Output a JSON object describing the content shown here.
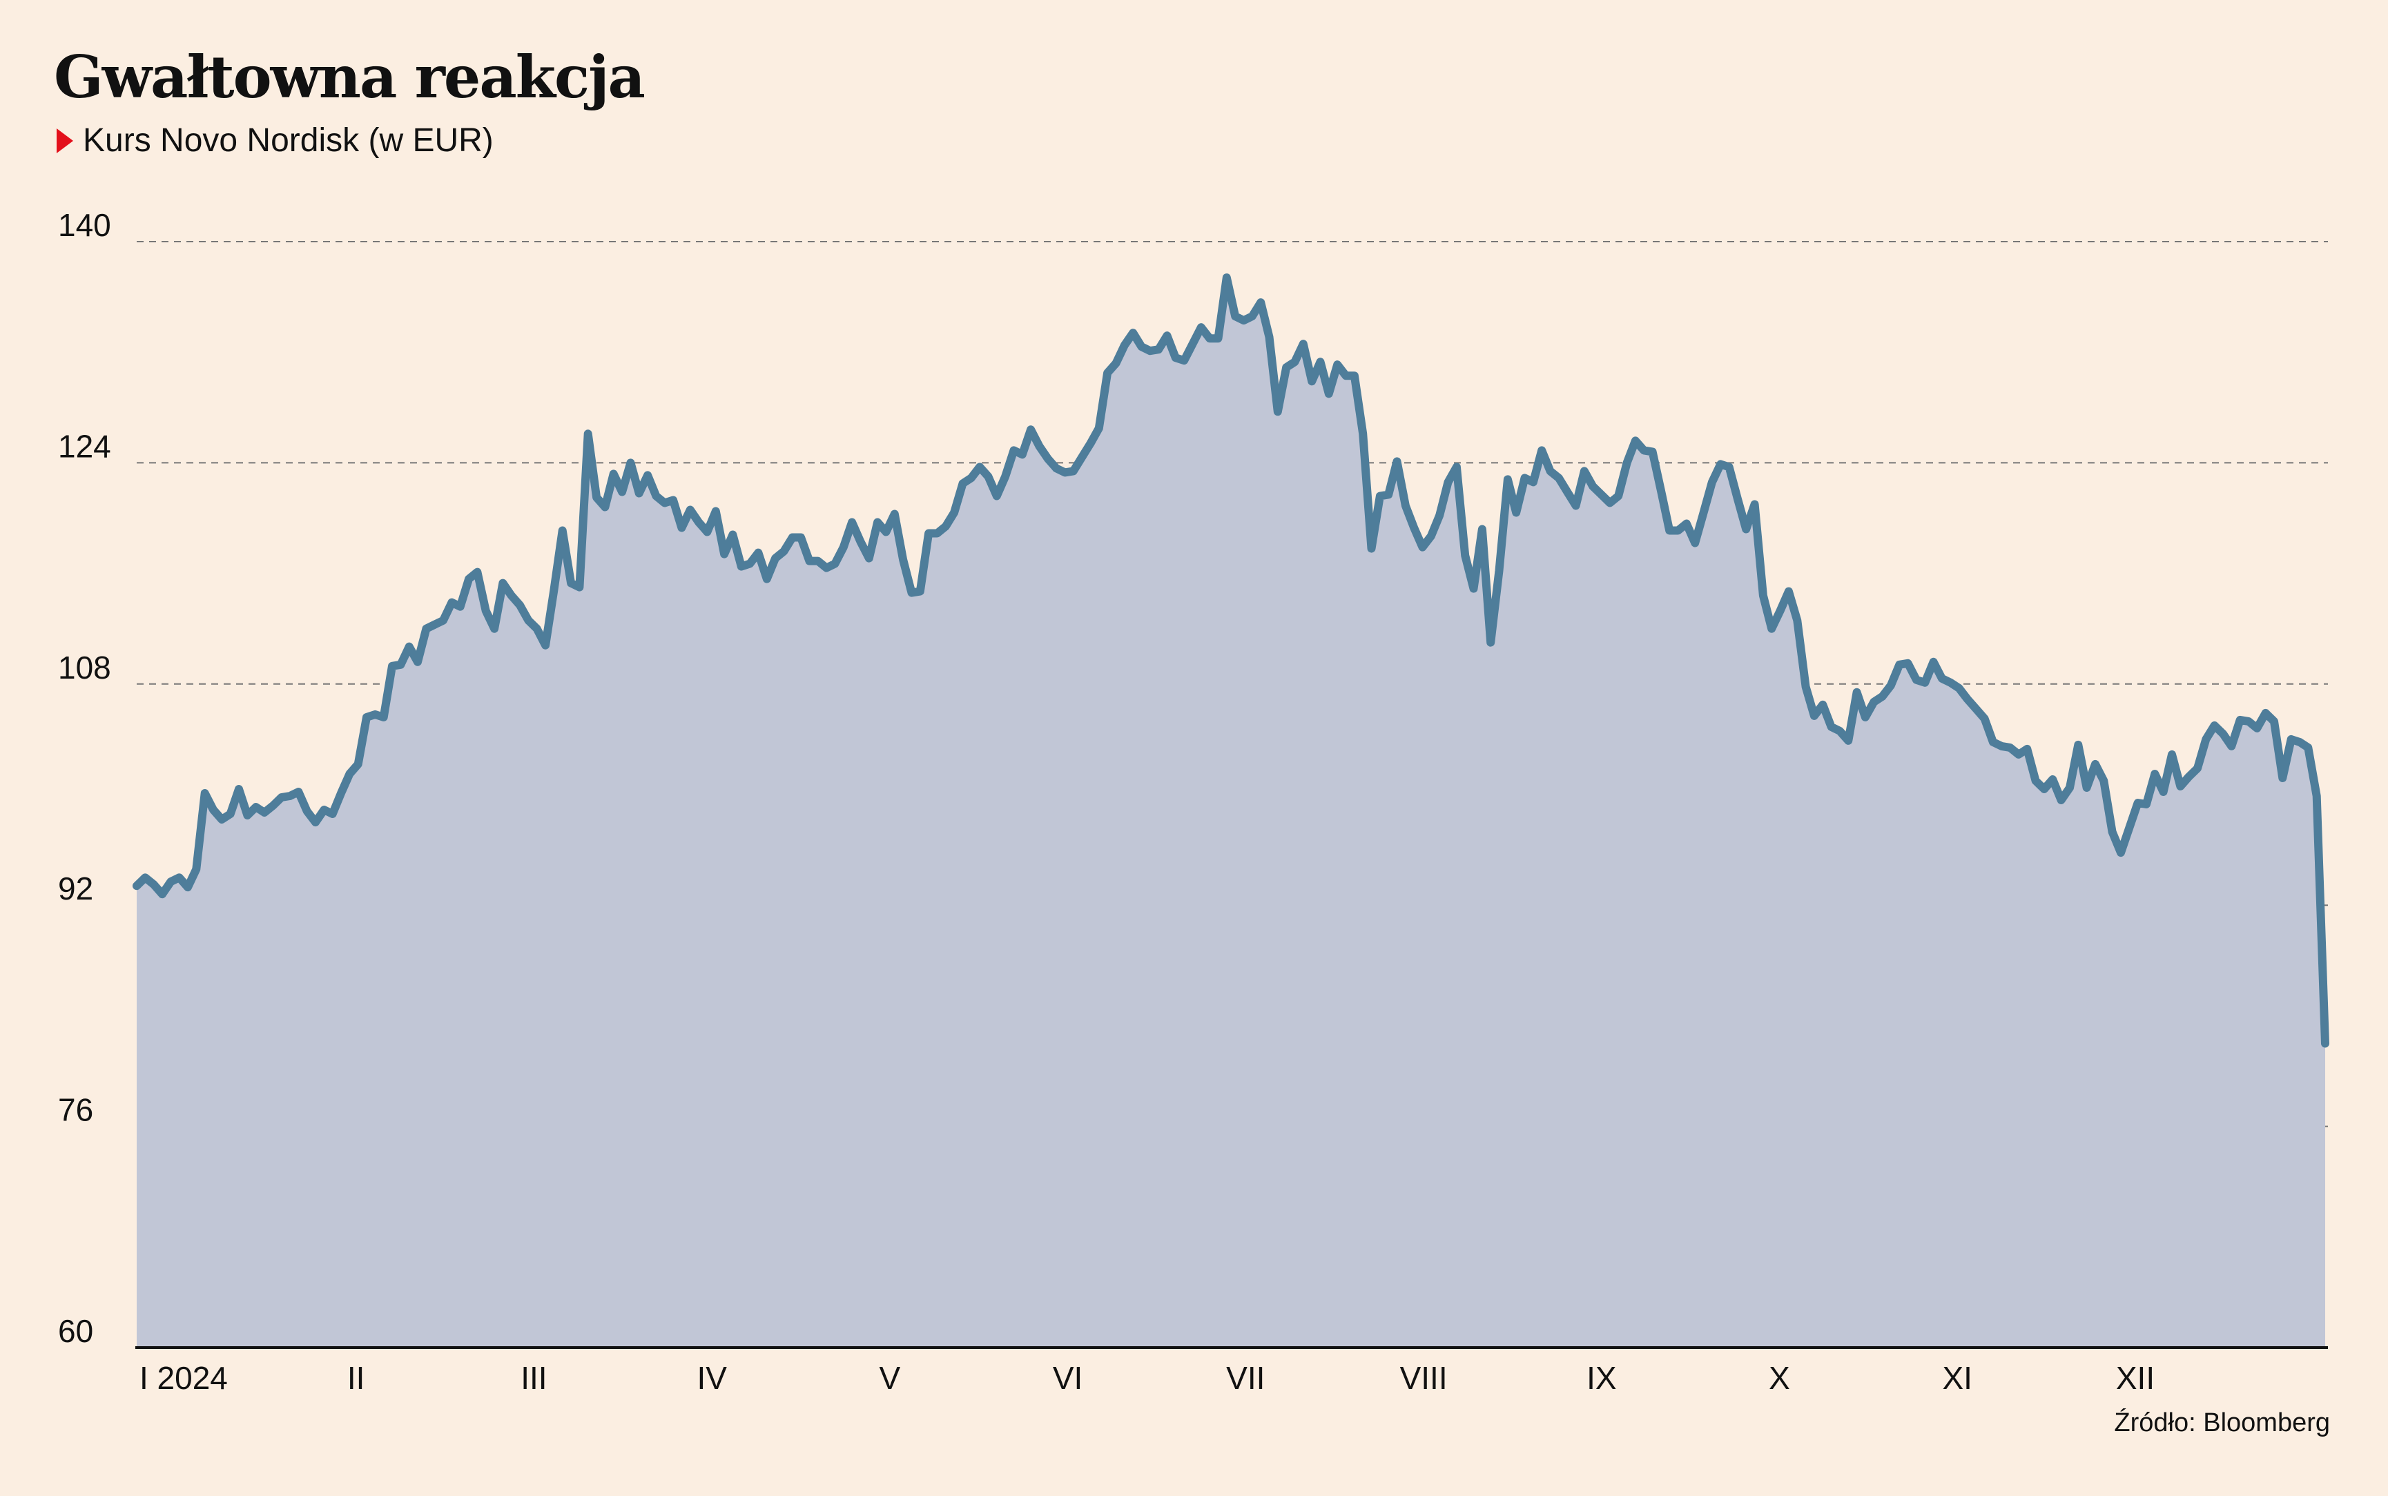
{
  "title": "Gwałtowna reakcja",
  "subtitle": "Kurs Novo Nordisk (w EUR)",
  "source": "Źródło: Bloomberg",
  "colors": {
    "background": "#FBEEE1",
    "line": "#4E7D9A",
    "area": "#C1C6D6",
    "marker": "#E3101B",
    "grid": "#777777"
  },
  "chart_data": {
    "type": "area",
    "title": "Gwałtowna reakcja",
    "subtitle": "Kurs Novo Nordisk (w EUR)",
    "xlabel": "",
    "ylabel": "",
    "ylim": [
      60,
      140
    ],
    "yticks": [
      60,
      76,
      92,
      108,
      124,
      140
    ],
    "xticks": [
      "I 2024",
      "II",
      "III",
      "IV",
      "V",
      "VI",
      "VII",
      "VIII",
      "IX",
      "X",
      "XI",
      "XII"
    ],
    "grid": true,
    "legend": "none",
    "series": [
      {
        "values": [
          93.4,
          94.0,
          93.5,
          92.8,
          93.7,
          94.0,
          93.3,
          94.6,
          100.1,
          98.9,
          98.2,
          98.6,
          100.4,
          98.5,
          99.1,
          98.7,
          99.2,
          99.8,
          99.9,
          100.2,
          98.8,
          98.0,
          98.9,
          98.6,
          100.1,
          101.5,
          102.2,
          105.6,
          105.8,
          105.6,
          109.3,
          109.4,
          110.7,
          109.6,
          112.0,
          112.3,
          112.6,
          113.9,
          113.6,
          115.6,
          116.1,
          113.3,
          112.0,
          115.3,
          114.4,
          113.7,
          112.6,
          112.0,
          110.8,
          114.8,
          119.1,
          115.3,
          115.0,
          126.1,
          121.5,
          120.8,
          123.2,
          121.9,
          124.0,
          121.8,
          123.1,
          121.6,
          121.1,
          121.3,
          119.3,
          120.6,
          119.7,
          119.0,
          120.5,
          117.4,
          118.8,
          116.5,
          116.7,
          117.5,
          115.6,
          117.1,
          117.6,
          118.6,
          118.6,
          116.9,
          116.9,
          116.4,
          116.7,
          117.9,
          119.7,
          118.3,
          117.1,
          119.7,
          119.0,
          120.3,
          117.0,
          114.6,
          114.7,
          118.9,
          118.9,
          119.4,
          120.4,
          122.5,
          122.9,
          123.7,
          123.0,
          121.6,
          123.0,
          124.9,
          124.6,
          126.4,
          125.2,
          124.3,
          123.6,
          123.3,
          123.4,
          124.4,
          125.4,
          126.5,
          130.5,
          131.2,
          132.5,
          133.4,
          132.4,
          132.1,
          132.2,
          133.2,
          131.6,
          131.4,
          132.6,
          133.8,
          133.0,
          133.0,
          137.4,
          134.6,
          134.3,
          134.6,
          135.6,
          133.1,
          127.7,
          130.9,
          131.3,
          132.6,
          129.9,
          131.3,
          129.0,
          131.1,
          130.3,
          130.3,
          126.1,
          117.8,
          121.6,
          121.7,
          124.1,
          120.9,
          119.3,
          117.9,
          118.7,
          120.2,
          122.6,
          123.7,
          117.3,
          114.9,
          119.2,
          111.0,
          116.2,
          122.8,
          120.4,
          122.9,
          122.6,
          124.9,
          123.4,
          122.9,
          121.9,
          120.9,
          123.4,
          122.3,
          121.7,
          121.1,
          121.6,
          124.0,
          125.6,
          124.9,
          124.8,
          122.0,
          119.1,
          119.1,
          119.6,
          118.2,
          120.4,
          122.6,
          123.9,
          123.7,
          121.4,
          119.2,
          121.0,
          114.4,
          112.0,
          113.3,
          114.7,
          112.6,
          107.8,
          105.7,
          106.5,
          104.9,
          104.6,
          103.9,
          107.4,
          105.6,
          106.7,
          107.1,
          107.9,
          109.4,
          109.5,
          108.3,
          108.1,
          109.6,
          108.4,
          108.1,
          107.7,
          106.9,
          106.2,
          105.5,
          103.8,
          103.5,
          103.4,
          102.9,
          103.3,
          101.0,
          100.4,
          101.1,
          99.6,
          100.5,
          103.6,
          100.5,
          102.2,
          101.0,
          97.3,
          95.8,
          97.6,
          99.4,
          99.3,
          101.5,
          100.2,
          102.9,
          100.6,
          101.3,
          101.9,
          104.0,
          105.0,
          104.4,
          103.5,
          105.4,
          105.3,
          104.8,
          105.9,
          105.3,
          101.2,
          104.0,
          103.8,
          103.4,
          99.9,
          82.0
        ]
      }
    ]
  }
}
